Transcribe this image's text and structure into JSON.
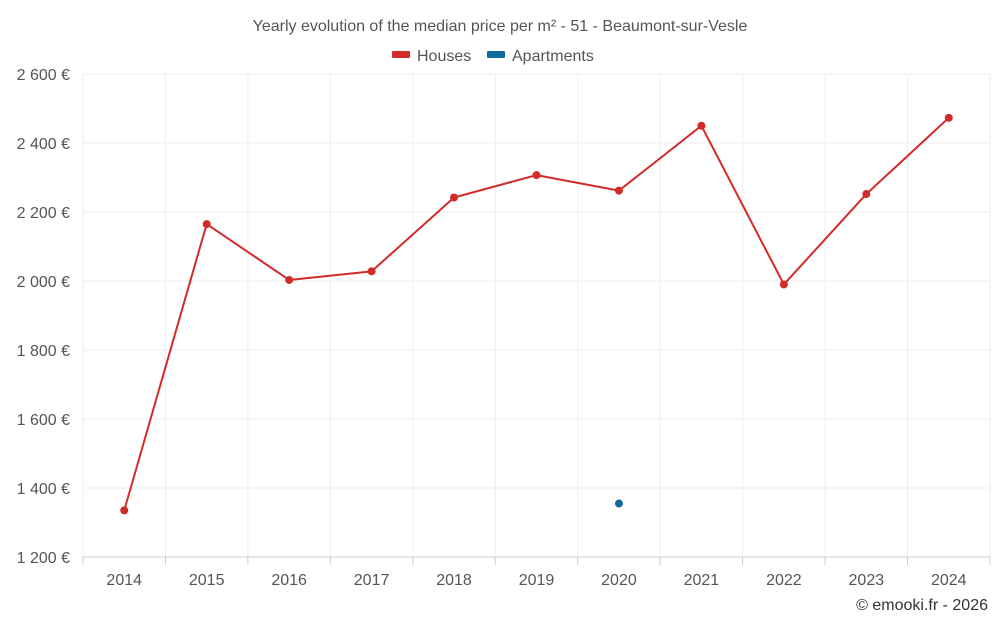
{
  "chart_data": {
    "type": "line",
    "title": "Yearly evolution of the median price per m² - 51 - Beaumont-sur-Vesle",
    "x": [
      "2014",
      "2015",
      "2016",
      "2017",
      "2018",
      "2019",
      "2020",
      "2021",
      "2022",
      "2023",
      "2024"
    ],
    "y_ticks": [
      "1 200 €",
      "1 400 €",
      "1 600 €",
      "1 800 €",
      "2 000 €",
      "2 200 €",
      "2 400 €",
      "2 600 €"
    ],
    "ylim": [
      1200,
      2600
    ],
    "grid": true,
    "legend_position": "top-center",
    "series": [
      {
        "name": "Houses",
        "color": "#d32a2a",
        "values": [
          1335,
          2165,
          2003,
          2028,
          2242,
          2307,
          2262,
          2450,
          1990,
          2252,
          2473
        ]
      },
      {
        "name": "Apartments",
        "color": "#0f6b9e",
        "values": [
          null,
          null,
          null,
          null,
          null,
          null,
          1355,
          null,
          null,
          null,
          null
        ]
      }
    ],
    "credit": "© emooki.fr - 2026"
  }
}
